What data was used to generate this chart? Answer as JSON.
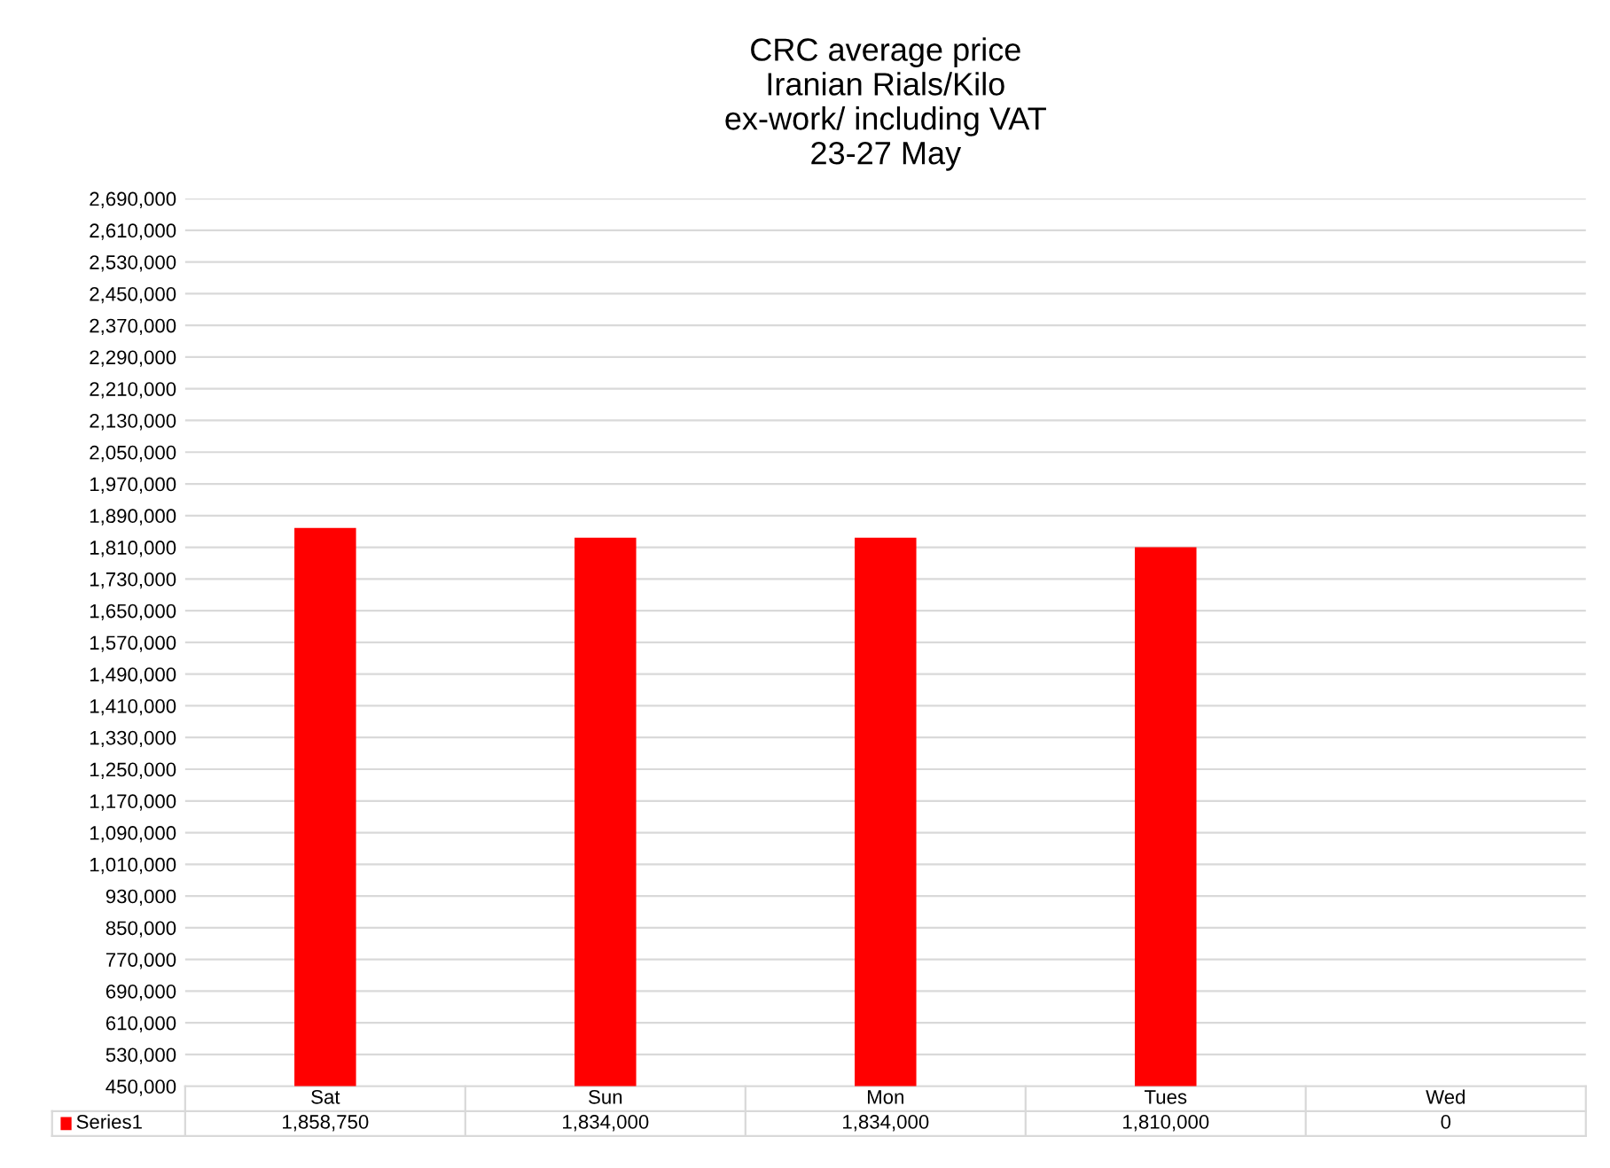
{
  "chart_data": {
    "type": "bar",
    "title": "CRC average price\nIranian Rials/Kilo\nex-work/ including VAT\n23-27 May",
    "categories": [
      "Sat",
      "Sun",
      "Mon",
      "Tues",
      "Wed"
    ],
    "series": [
      {
        "name": "Series1",
        "color": "#ff0000",
        "values": [
          1858750,
          1834000,
          1834000,
          1810000,
          null
        ],
        "value_labels": [
          "1,858,750",
          "1,834,000",
          "1,834,000",
          "1,810,000",
          "0"
        ]
      }
    ],
    "ylim": [
      450000,
      2690000
    ],
    "yticks": [
      {
        "value": 450000,
        "label": "450,000"
      },
      {
        "value": 530000,
        "label": "530,000"
      },
      {
        "value": 610000,
        "label": "610,000"
      },
      {
        "value": 690000,
        "label": "690,000"
      },
      {
        "value": 770000,
        "label": "770,000"
      },
      {
        "value": 850000,
        "label": "850,000"
      },
      {
        "value": 930000,
        "label": "930,000"
      },
      {
        "value": 1010000,
        "label": "1,010,000"
      },
      {
        "value": 1090000,
        "label": "1,090,000"
      },
      {
        "value": 1170000,
        "label": "1,170,000"
      },
      {
        "value": 1250000,
        "label": "1,250,000"
      },
      {
        "value": 1330000,
        "label": "1,330,000"
      },
      {
        "value": 1410000,
        "label": "1,410,000"
      },
      {
        "value": 1490000,
        "label": "1,490,000"
      },
      {
        "value": 1570000,
        "label": "1,570,000"
      },
      {
        "value": 1650000,
        "label": "1,650,000"
      },
      {
        "value": 1730000,
        "label": "1,730,000"
      },
      {
        "value": 1810000,
        "label": "1,810,000"
      },
      {
        "value": 1890000,
        "label": "1,890,000"
      },
      {
        "value": 1970000,
        "label": "1,970,000"
      },
      {
        "value": 2050000,
        "label": "2,050,000"
      },
      {
        "value": 2130000,
        "label": "2,130,000"
      },
      {
        "value": 2210000,
        "label": "2,210,000"
      },
      {
        "value": 2290000,
        "label": "2,290,000"
      },
      {
        "value": 2370000,
        "label": "2,370,000"
      },
      {
        "value": 2450000,
        "label": "2,450,000"
      },
      {
        "value": 2530000,
        "label": "2,530,000"
      },
      {
        "value": 2610000,
        "label": "2,610,000"
      },
      {
        "value": 2690000,
        "label": "2,690,000"
      }
    ],
    "grid": "y"
  }
}
